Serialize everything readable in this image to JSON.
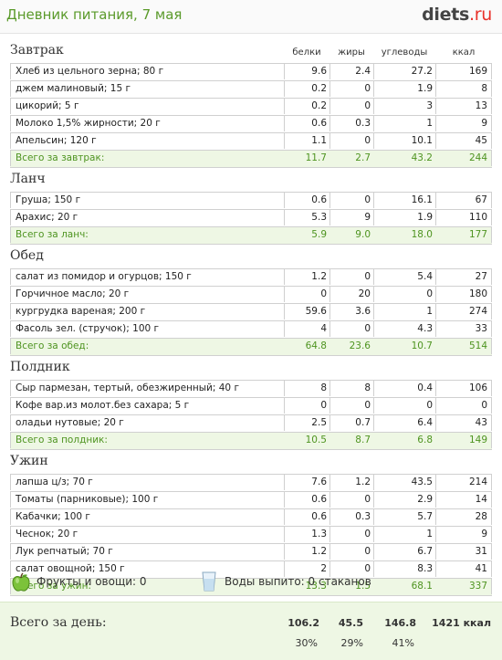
{
  "header": {
    "title": "Дневник питания, 7 мая",
    "logo_main": "diets",
    "logo_suffix": ".ru"
  },
  "columns": {
    "protein": "белки",
    "fat": "жиры",
    "carbs": "углеводы",
    "kcal": "ккал"
  },
  "meals": [
    {
      "title": "Завтрак",
      "rows": [
        [
          "Хлеб из цельного зерна; 80 г",
          "9.6",
          "2.4",
          "27.2",
          "169"
        ],
        [
          "джем малиновый; 15 г",
          "0.2",
          "0",
          "1.9",
          "8"
        ],
        [
          "цикорий; 5 г",
          "0.2",
          "0",
          "3",
          "13"
        ],
        [
          "Молоко 1,5% жирности; 20 г",
          "0.6",
          "0.3",
          "1",
          "9"
        ],
        [
          "Апельсин; 120 г",
          "1.1",
          "0",
          "10.1",
          "45"
        ]
      ],
      "total": [
        "Всего за завтрак:",
        "11.7",
        "2.7",
        "43.2",
        "244"
      ]
    },
    {
      "title": "Ланч",
      "rows": [
        [
          "Груша; 150 г",
          "0.6",
          "0",
          "16.1",
          "67"
        ],
        [
          "Арахис; 20 г",
          "5.3",
          "9",
          "1.9",
          "110"
        ]
      ],
      "total": [
        "Всего за ланч:",
        "5.9",
        "9.0",
        "18.0",
        "177"
      ]
    },
    {
      "title": "Обед",
      "rows": [
        [
          "салат из помидор и огурцов; 150 г",
          "1.2",
          "0",
          "5.4",
          "27"
        ],
        [
          "Горчичное масло; 20 г",
          "0",
          "20",
          "0",
          "180"
        ],
        [
          "кургрудка вареная; 200 г",
          "59.6",
          "3.6",
          "1",
          "274"
        ],
        [
          "Фасоль зел. (стручок); 100 г",
          "4",
          "0",
          "4.3",
          "33"
        ]
      ],
      "total": [
        "Всего за обед:",
        "64.8",
        "23.6",
        "10.7",
        "514"
      ]
    },
    {
      "title": "Полдник",
      "rows": [
        [
          "Сыр пармезан, тертый, обезжиренный; 40 г",
          "8",
          "8",
          "0.4",
          "106"
        ],
        [
          "Кофе вар.из молот.без сахара; 5 г",
          "0",
          "0",
          "0",
          "0"
        ],
        [
          "оладьи нутовые; 20 г",
          "2.5",
          "0.7",
          "6.4",
          "43"
        ]
      ],
      "total": [
        "Всего за полдник:",
        "10.5",
        "8.7",
        "6.8",
        "149"
      ]
    },
    {
      "title": "Ужин",
      "rows": [
        [
          "лапша ц/з; 70 г",
          "7.6",
          "1.2",
          "43.5",
          "214"
        ],
        [
          "Томаты (парниковые); 100 г",
          "0.6",
          "0",
          "2.9",
          "14"
        ],
        [
          "Кабачки; 100 г",
          "0.6",
          "0.3",
          "5.7",
          "28"
        ],
        [
          "Чеснок; 20 г",
          "1.3",
          "0",
          "1",
          "9"
        ],
        [
          "Лук репчатый; 70 г",
          "1.2",
          "0",
          "6.7",
          "31"
        ],
        [
          "салат овощной; 150 г",
          "2",
          "0",
          "8.3",
          "41"
        ]
      ],
      "total": [
        "Всего за ужин:",
        "13.3",
        "1.5",
        "68.1",
        "337"
      ]
    }
  ],
  "summary": {
    "fruits_label": "Фрукты и овощи: 0",
    "water_label": "Воды выпито: 0 стаканов",
    "fruits_icon": "apple-icon",
    "water_icon": "glass-icon"
  },
  "day_total": {
    "label": "Всего за день:",
    "protein": "106.2",
    "fat": "45.5",
    "carbs": "146.8",
    "kcal": "1421 ккал",
    "protein_pct": "30%",
    "fat_pct": "29%",
    "carbs_pct": "41%"
  },
  "colors": {
    "accent_green": "#4e9420",
    "total_bg": "#eef7e4",
    "logo_red": "#e8322a"
  }
}
